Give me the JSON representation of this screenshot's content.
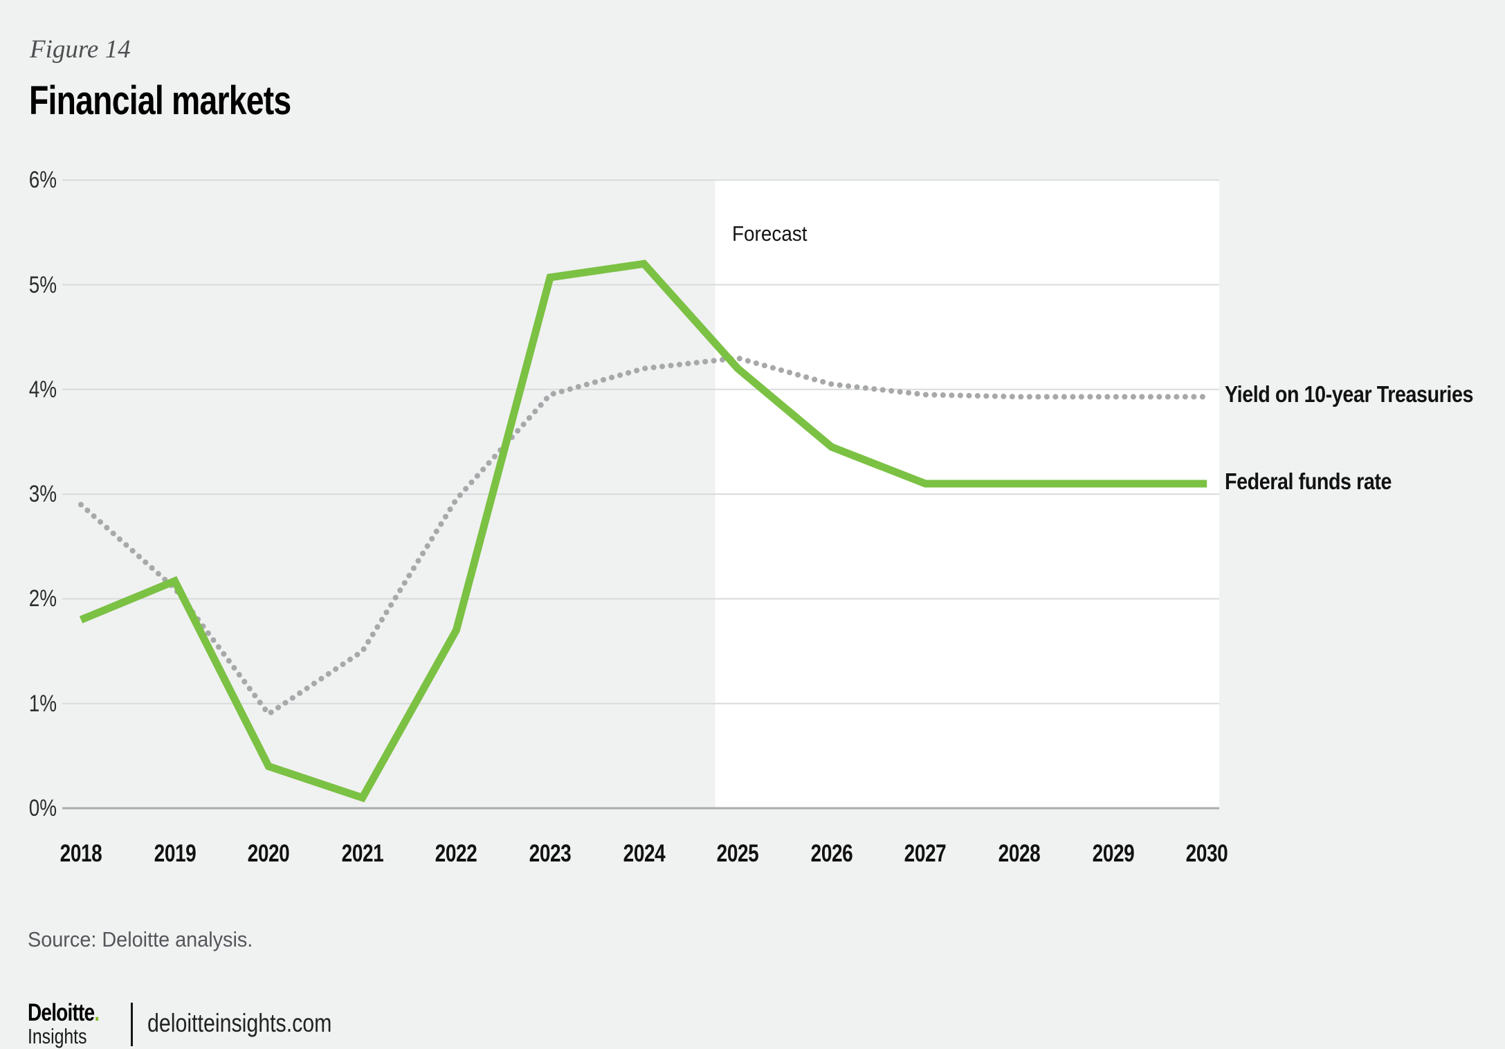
{
  "figure": {
    "label": "Figure 14",
    "title": "Financial markets"
  },
  "chart_data": {
    "type": "line",
    "x": [
      2018,
      2019,
      2020,
      2021,
      2022,
      2023,
      2024,
      2025,
      2026,
      2027,
      2028,
      2029,
      2030
    ],
    "series": [
      {
        "name": "Yield on 10-year Treasuries",
        "style": "dotted",
        "color": "#a7a8aa",
        "values": [
          2.9,
          2.1,
          0.9,
          1.5,
          2.95,
          3.95,
          4.2,
          4.3,
          4.05,
          3.95,
          3.93,
          3.93,
          3.93
        ]
      },
      {
        "name": "Federal funds rate",
        "style": "solid",
        "color": "#7bc143",
        "values": [
          1.8,
          2.17,
          0.4,
          0.1,
          1.7,
          5.07,
          5.2,
          4.2,
          3.45,
          3.1,
          3.1,
          3.1,
          3.1
        ]
      }
    ],
    "ylim": [
      0,
      6
    ],
    "y_ticks": [
      "0%",
      "1%",
      "2%",
      "3%",
      "4%",
      "5%",
      "6%"
    ],
    "grid": "horizontal",
    "legend_position": "right-of-lines",
    "forecast": {
      "label": "Forecast",
      "start_year": 2024.76,
      "band_color": "#ffffff"
    },
    "colors": {
      "background": "#f0f1f1",
      "gridline": "#d9dadb",
      "axis_line": "#a9abad"
    }
  },
  "source": "Source: Deloitte analysis.",
  "footer": {
    "brand": "Deloitte",
    "brand_dot": ".",
    "brand_sub": "Insights",
    "site": "deloitteinsights.com"
  }
}
